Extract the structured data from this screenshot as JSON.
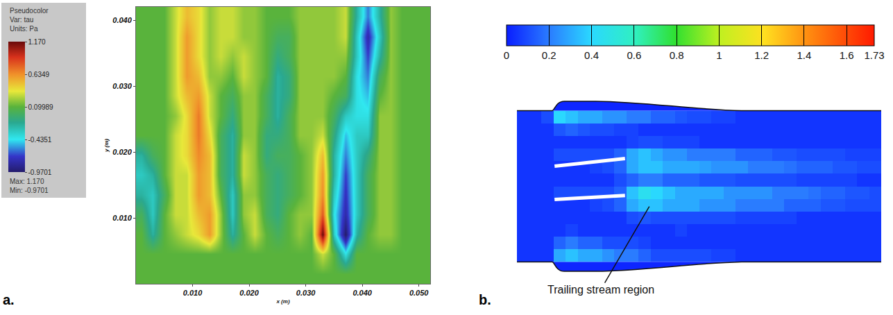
{
  "chart_data": [
    {
      "type": "heatmap",
      "panel": "a.",
      "x_label": "x (m)",
      "y_label": "y (m)",
      "x": [
        0.001,
        0.003,
        0.005,
        0.007,
        0.009,
        0.011,
        0.013,
        0.015,
        0.017,
        0.019,
        0.021,
        0.023,
        0.025,
        0.027,
        0.029,
        0.031,
        0.033,
        0.035,
        0.037,
        0.039,
        0.041,
        0.043,
        0.045,
        0.047,
        0.049,
        0.051
      ],
      "y": [
        0.0015,
        0.0045,
        0.0075,
        0.0105,
        0.0135,
        0.0165,
        0.0195,
        0.0225,
        0.0255,
        0.0285,
        0.0315,
        0.0345,
        0.0375,
        0.0405
      ],
      "cells": [
        [
          0.1,
          0.1,
          0.1,
          0.1,
          0.1,
          0.1,
          0.1,
          0.1,
          0.1,
          0.1,
          0.1,
          0.1,
          0.1,
          0.1,
          0.1,
          0.1,
          0.1,
          0.1,
          0.1,
          0.1,
          0.1,
          0.1,
          0.1,
          0.1,
          0.1,
          0.1
        ],
        [
          0.1,
          0.1,
          0.1,
          0.1,
          0.1,
          0.1,
          0.1,
          0.1,
          0.1,
          0.1,
          0.1,
          0.1,
          0.1,
          0.1,
          0.1,
          0.1,
          0.3,
          0.1,
          -0.4,
          0.1,
          0.1,
          0.1,
          0.1,
          0.1,
          0.1,
          0.1
        ],
        [
          0.1,
          -0.2,
          0.1,
          0.2,
          0.3,
          0.4,
          0.6,
          0.2,
          -0.2,
          0.1,
          0.3,
          0.1,
          0,
          0.1,
          0.2,
          0.1,
          1.17,
          -0.3,
          -0.9701,
          -0.2,
          0.1,
          0.2,
          0.2,
          0.1,
          0.1,
          0.1
        ],
        [
          0,
          -0.3,
          0.1,
          0.3,
          0.3,
          0.5,
          0.6,
          0.2,
          -0.3,
          0.2,
          0.3,
          0,
          -0.1,
          0.1,
          0.2,
          0.2,
          0.8,
          -0.4,
          -0.8,
          -0.3,
          0,
          0.2,
          0.2,
          0.1,
          0.1,
          0.1
        ],
        [
          -0.2,
          -0.3,
          0,
          0.3,
          0.3,
          0.6,
          0.5,
          0.1,
          -0.3,
          0.2,
          0.2,
          0,
          -0.1,
          0,
          0.1,
          0.2,
          0.65,
          -0.3,
          -0.75,
          -0.3,
          0,
          0.2,
          0.2,
          0.1,
          0.1,
          0.1
        ],
        [
          -0.3,
          -0.2,
          0.1,
          0.3,
          0.3,
          0.6,
          0.5,
          0,
          -0.2,
          0.3,
          0.2,
          0,
          -0.1,
          0,
          0.1,
          0.2,
          0.6,
          -0.2,
          -0.7,
          -0.3,
          0,
          0.2,
          0.2,
          0.1,
          0.1,
          0.1
        ],
        [
          -0.2,
          0,
          0.1,
          0.3,
          0.4,
          0.65,
          0.5,
          0,
          -0.2,
          0.3,
          0.2,
          -0.1,
          0,
          0,
          0.1,
          0.2,
          0.5,
          -0.2,
          -0.6,
          -0.3,
          -0.1,
          0.2,
          0.2,
          0.1,
          0.1,
          0.1
        ],
        [
          0.1,
          0.1,
          0.1,
          0.3,
          0.4,
          0.7,
          0.4,
          0,
          -0.2,
          0.2,
          0.2,
          -0.1,
          -0.1,
          0,
          0.2,
          0.2,
          0.3,
          -0.1,
          -0.5,
          -0.3,
          -0.3,
          0.2,
          0.2,
          0.1,
          0.1,
          0.1
        ],
        [
          0.1,
          0.1,
          0.1,
          0.2,
          0.4,
          0.7,
          0.3,
          0.1,
          -0.1,
          0.2,
          0.2,
          0,
          -0.2,
          0,
          0.2,
          0.2,
          0.2,
          0,
          -0.3,
          -0.4,
          -0.4,
          0.2,
          0.2,
          0.1,
          0.1,
          0.1
        ],
        [
          0.1,
          0.1,
          0.1,
          0.3,
          0.5,
          0.6,
          0.3,
          0.1,
          0,
          0.2,
          0.2,
          0,
          -0.2,
          -0.1,
          0.2,
          0.2,
          0.2,
          0.1,
          0,
          -0.4,
          -0.5,
          0.1,
          0.2,
          0.1,
          0.1,
          0.1
        ],
        [
          0.1,
          0.1,
          0.1,
          0.3,
          0.6,
          0.5,
          0.2,
          0.2,
          0.1,
          0.3,
          0.2,
          0.1,
          -0.2,
          -0.1,
          0.2,
          0.2,
          0.2,
          0.2,
          0.1,
          -0.4,
          -0.6,
          0,
          0.2,
          0.1,
          0.1,
          0.1
        ],
        [
          0.1,
          0.1,
          0.1,
          0.3,
          0.6,
          0.4,
          0.2,
          0.3,
          0.2,
          0.3,
          0.2,
          0.1,
          -0.1,
          0,
          0.2,
          0.2,
          0.2,
          0.2,
          0.2,
          -0.3,
          -0.7,
          -0.2,
          0.2,
          0.1,
          0.1,
          0.1
        ],
        [
          0.1,
          0.1,
          0.1,
          0.3,
          0.6,
          0.4,
          0.2,
          0.3,
          0.3,
          0.2,
          0.2,
          0.1,
          0,
          0,
          0.2,
          0.2,
          0.2,
          0.2,
          0.3,
          -0.3,
          -0.8,
          -0.3,
          0.2,
          0.1,
          0.1,
          0.1
        ],
        [
          0.1,
          0.1,
          0.1,
          0.3,
          0.5,
          0.4,
          0.2,
          0.3,
          0.3,
          0.2,
          0.2,
          0.1,
          0.1,
          0.1,
          0.2,
          0.2,
          0.2,
          0.2,
          0.3,
          -0.2,
          -0.6,
          -0.2,
          0.2,
          0.1,
          0.1,
          0.1
        ]
      ],
      "xlim": [
        0,
        0.052
      ],
      "ylim": [
        0,
        0.042
      ],
      "xticks": [
        {
          "value": 0.01,
          "label": "0.010"
        },
        {
          "value": 0.02,
          "label": "0.020"
        },
        {
          "value": 0.03,
          "label": "0.030"
        },
        {
          "value": 0.04,
          "label": "0.040"
        },
        {
          "value": 0.05,
          "label": "0.050"
        }
      ],
      "yticks": [
        {
          "value": 0.01,
          "label": "0.010"
        },
        {
          "value": 0.02,
          "label": "0.020"
        },
        {
          "value": 0.03,
          "label": "0.030"
        },
        {
          "value": 0.04,
          "label": "0.040"
        }
      ],
      "colorbar": {
        "title": [
          "Pseudocolor",
          "Var: tau",
          "Units: Pa"
        ],
        "range": [
          -0.9701,
          1.17
        ],
        "ticks": [
          {
            "value": 1.17,
            "label": "1.170"
          },
          0.6349,
          0.09989,
          -0.4351,
          -0.9701
        ],
        "notes": [
          "Max: 1.170",
          "Min: -0.9701"
        ]
      }
    },
    {
      "type": "heatmap",
      "panel": "b.",
      "tick_labels": false,
      "cells": [
        [
          0.05,
          0.05,
          0.05,
          0.3,
          0.35,
          0.3,
          0.3,
          0.25,
          0.2,
          0.2,
          0.15,
          0.1,
          0.1,
          0.1,
          0.1,
          0.1,
          0.08,
          0.08,
          0.05,
          0.05,
          0.05,
          0.05,
          0.05,
          0.05,
          0.05,
          0.05,
          0.05,
          0.05,
          0.05,
          0.05
        ],
        [
          0.05,
          0.05,
          0.05,
          0.15,
          0.2,
          0.15,
          0.15,
          0.1,
          0.1,
          0.1,
          0.08,
          0.05,
          0.05,
          0.05,
          0.05,
          0.05,
          0.05,
          0.05,
          0.05,
          0.05,
          0.05,
          0.05,
          0.05,
          0.05,
          0.05,
          0.05,
          0.05,
          0.05,
          0.05,
          0.05
        ],
        [
          0.05,
          0.05,
          0.05,
          0.05,
          0.08,
          0.05,
          0.05,
          0.05,
          0.05,
          0.05,
          0.05,
          0.05,
          0.05,
          0.08,
          0.05,
          0.05,
          0.05,
          0.05,
          0.05,
          0.05,
          0.05,
          0.05,
          0.05,
          0.05,
          0.05,
          0.05,
          0.05,
          0.05,
          0.05,
          0.05
        ],
        [
          0.05,
          0.05,
          0.05,
          0.05,
          0.05,
          0.05,
          0.05,
          0.05,
          0.05,
          0.1,
          0.12,
          0.1,
          0.1,
          0.1,
          0.1,
          0.1,
          0.1,
          0.1,
          0.08,
          0.08,
          0.08,
          0.08,
          0.08,
          0.05,
          0.05,
          0.05,
          0.05,
          0.05,
          0.05,
          0.05
        ],
        [
          0.05,
          0.05,
          0.05,
          0.05,
          0.05,
          0.05,
          0.08,
          0.1,
          0.15,
          0.3,
          0.35,
          0.35,
          0.3,
          0.3,
          0.3,
          0.25,
          0.25,
          0.25,
          0.2,
          0.2,
          0.2,
          0.2,
          0.15,
          0.15,
          0.15,
          0.12,
          0.12,
          0.1,
          0.1,
          0.1
        ],
        [
          0.05,
          0.05,
          0.05,
          0.1,
          0.1,
          0.1,
          0.1,
          0.1,
          0.15,
          0.35,
          0.45,
          0.4,
          0.35,
          0.3,
          0.3,
          0.3,
          0.3,
          0.25,
          0.25,
          0.25,
          0.25,
          0.2,
          0.2,
          0.2,
          0.18,
          0.15,
          0.15,
          0.12,
          0.12,
          0.1
        ],
        [
          0.05,
          0.05,
          0.05,
          0.05,
          0.05,
          0.05,
          0.05,
          0.05,
          0.1,
          0.15,
          0.2,
          0.2,
          0.15,
          0.15,
          0.15,
          0.12,
          0.12,
          0.12,
          0.1,
          0.1,
          0.1,
          0.1,
          0.1,
          0.08,
          0.08,
          0.08,
          0.08,
          0.08,
          0.05,
          0.05
        ],
        [
          0.05,
          0.05,
          0.05,
          0.05,
          0.05,
          0.05,
          0.08,
          0.1,
          0.15,
          0.3,
          0.35,
          0.35,
          0.3,
          0.3,
          0.3,
          0.28,
          0.25,
          0.25,
          0.25,
          0.2,
          0.2,
          0.2,
          0.18,
          0.15,
          0.15,
          0.15,
          0.12,
          0.12,
          0.1,
          0.1
        ],
        [
          0.05,
          0.05,
          0.05,
          0.1,
          0.1,
          0.1,
          0.1,
          0.1,
          0.15,
          0.3,
          0.35,
          0.3,
          0.25,
          0.25,
          0.2,
          0.2,
          0.2,
          0.2,
          0.15,
          0.15,
          0.15,
          0.12,
          0.12,
          0.1,
          0.1,
          0.1,
          0.1,
          0.08,
          0.08,
          0.08
        ],
        [
          0.05,
          0.05,
          0.05,
          0.05,
          0.05,
          0.05,
          0.05,
          0.05,
          0.05,
          0.08,
          0.1,
          0.1,
          0.08,
          0.08,
          0.08,
          0.05,
          0.05,
          0.05,
          0.05,
          0.05,
          0.05,
          0.05,
          0.05,
          0.05,
          0.05,
          0.05,
          0.05,
          0.05,
          0.05,
          0.05
        ],
        [
          0.05,
          0.05,
          0.05,
          0.12,
          0.15,
          0.12,
          0.1,
          0.1,
          0.08,
          0.08,
          0.05,
          0.05,
          0.05,
          0.05,
          0.05,
          0.05,
          0.05,
          0.05,
          0.05,
          0.05,
          0.05,
          0.05,
          0.05,
          0.05,
          0.05,
          0.05,
          0.05,
          0.05,
          0.05,
          0.05
        ],
        [
          0.05,
          0.05,
          0.1,
          0.4,
          0.35,
          0.3,
          0.3,
          0.25,
          0.25,
          0.2,
          0.2,
          0.15,
          0.15,
          0.12,
          0.1,
          0.1,
          0.08,
          0.08,
          0.05,
          0.05,
          0.05,
          0.05,
          0.05,
          0.05,
          0.05,
          0.05,
          0.05,
          0.05,
          0.05,
          0.05
        ]
      ],
      "colorbar": {
        "range": [
          0,
          1.73
        ],
        "ticks": [
          0,
          0.2,
          0.4,
          0.6,
          0.8,
          1,
          1.2,
          1.4,
          1.6,
          1.73
        ]
      },
      "annotations": [
        {
          "text": "Trailing stream region"
        }
      ]
    }
  ]
}
